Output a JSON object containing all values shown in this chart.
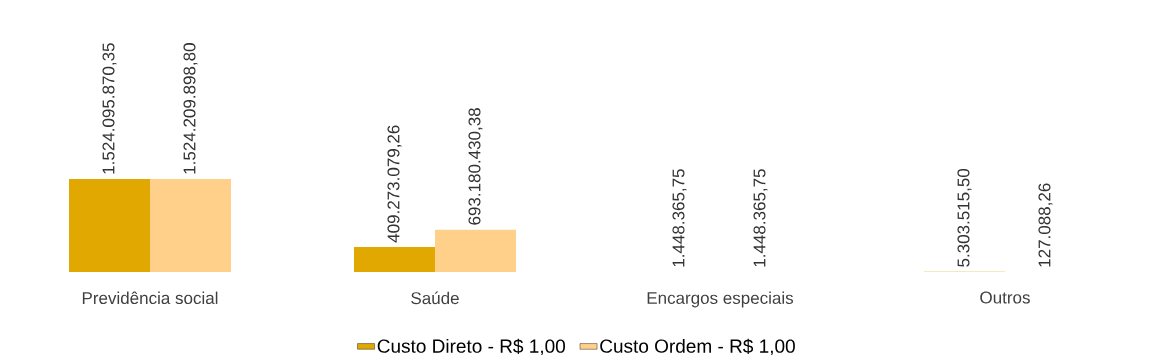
{
  "chart_data": {
    "type": "bar",
    "tick_labels": "x",
    "legend": "bottom",
    "categories": [
      "Previdência social",
      "Saúde",
      "Encargos especiais",
      "Outros"
    ],
    "series": [
      {
        "name": "Custo Direto - R$ 1,00",
        "color": "#e0a800",
        "values": [
          1524095870.35,
          409273079.26,
          1448365.75,
          5303515.5
        ],
        "value_labels": [
          "1.524.095.870,35",
          "409.273.079,26",
          "1.448.365,75",
          "5.303.515,50"
        ]
      },
      {
        "name": "Custo Ordem - R$ 1,00",
        "color": "#ffd08a",
        "values": [
          1524209898.8,
          693180430.38,
          1448365.75,
          127088.26
        ],
        "value_labels": [
          "1.524.209.898,80",
          "693.180.430,38",
          "1.448.365,75",
          "127.088,26"
        ]
      }
    ]
  }
}
